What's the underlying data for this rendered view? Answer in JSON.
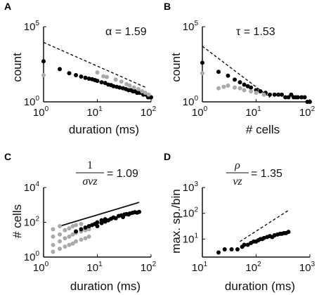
{
  "panels": {
    "A": {
      "letter": "A",
      "annotation": "α = 1.59",
      "ylabel": "count",
      "xlabel": "duration (ms)",
      "yticks": [
        {
          "base": "10",
          "exp": "5"
        },
        {
          "base": "10",
          "exp": "0"
        }
      ],
      "xticks": [
        {
          "base": "10",
          "exp": "0"
        },
        {
          "base": "10",
          "exp": "1"
        },
        {
          "base": "10",
          "exp": "2"
        }
      ]
    },
    "B": {
      "letter": "B",
      "annotation": "τ = 1.53",
      "ylabel": "count",
      "xlabel": "# cells",
      "yticks": [
        {
          "base": "10",
          "exp": "5"
        },
        {
          "base": "10",
          "exp": "0"
        }
      ],
      "xticks": [
        {
          "base": "10",
          "exp": "0"
        },
        {
          "base": "10",
          "exp": "1"
        },
        {
          "base": "10",
          "exp": "2"
        }
      ]
    },
    "C": {
      "letter": "C",
      "annotation": {
        "numerator": "1",
        "denominator": "σνz",
        "value": "= 1.09"
      },
      "ylabel": "# cells",
      "xlabel": "duration (ms)",
      "yticks": [
        {
          "base": "10",
          "exp": "4"
        },
        {
          "base": "10",
          "exp": "2"
        },
        {
          "base": "10",
          "exp": "0"
        }
      ],
      "xticks": [
        {
          "base": "10",
          "exp": "0"
        },
        {
          "base": "10",
          "exp": "1"
        },
        {
          "base": "10",
          "exp": "2"
        }
      ]
    },
    "D": {
      "letter": "D",
      "annotation": {
        "numerator": "ρ",
        "denominator": "νz",
        "value": "= 1.35"
      },
      "ylabel": "max. sp./bin",
      "xlabel": "duration (ms)",
      "yticks": [
        {
          "base": "10",
          "exp": "3"
        },
        {
          "base": "10",
          "exp": "2"
        },
        {
          "base": "10",
          "exp": "1"
        }
      ],
      "xticks": [
        {
          "base": "10",
          "exp": "1"
        },
        {
          "base": "10",
          "exp": "2"
        },
        {
          "base": "10",
          "exp": "3"
        }
      ]
    }
  },
  "chart_data": [
    {
      "panel": "A",
      "type": "scatter",
      "xscale": "log",
      "yscale": "log",
      "xlim": [
        1,
        100
      ],
      "ylim": [
        1,
        100000
      ],
      "xlabel": "duration (ms)",
      "ylabel": "count",
      "annotation": "α = 1.59",
      "series": [
        {
          "color": "#000000",
          "points": [
            [
              1,
              500
            ],
            [
              2,
              150
            ],
            [
              3,
              80
            ],
            [
              4,
              60
            ],
            [
              5,
              48
            ],
            [
              6,
              40
            ],
            [
              7,
              35
            ],
            [
              8,
              32
            ],
            [
              9,
              28
            ],
            [
              10,
              25
            ],
            [
              12,
              20
            ],
            [
              14,
              18
            ],
            [
              16,
              14
            ],
            [
              18,
              13
            ],
            [
              20,
              11
            ],
            [
              23,
              10
            ],
            [
              26,
              9
            ],
            [
              30,
              8
            ],
            [
              34,
              7
            ],
            [
              38,
              6
            ],
            [
              42,
              6
            ],
            [
              46,
              5
            ],
            [
              50,
              5
            ],
            [
              55,
              4
            ],
            [
              60,
              4
            ],
            [
              66,
              4
            ],
            [
              72,
              3
            ],
            [
              80,
              3
            ],
            [
              88,
              2
            ],
            [
              95,
              2
            ],
            [
              100,
              2
            ]
          ]
        },
        {
          "color": "#aaaaaa",
          "points": [
            [
              1,
              60
            ],
            [
              10,
              90
            ],
            [
              13,
              50
            ],
            [
              15,
              45
            ],
            [
              22,
              30
            ],
            [
              28,
              22
            ],
            [
              35,
              15
            ],
            [
              40,
              12
            ],
            [
              48,
              9
            ],
            [
              58,
              7
            ],
            [
              68,
              5
            ],
            [
              78,
              4
            ],
            [
              90,
              3
            ]
          ]
        }
      ],
      "fit_line": {
        "style": "dashed",
        "points": [
          [
            1,
            9000
          ],
          [
            80,
            9
          ]
        ]
      }
    },
    {
      "panel": "B",
      "type": "scatter",
      "xscale": "log",
      "yscale": "log",
      "xlim": [
        1,
        100
      ],
      "ylim": [
        1,
        100000
      ],
      "xlabel": "# cells",
      "ylabel": "count",
      "annotation": "τ = 1.53",
      "series": [
        {
          "color": "#000000",
          "points": [
            [
              1,
              400
            ],
            [
              2,
              100
            ],
            [
              3,
              55
            ],
            [
              4,
              30
            ],
            [
              5,
              20
            ],
            [
              6,
              14
            ],
            [
              7,
              11
            ],
            [
              8,
              9
            ],
            [
              10,
              6
            ],
            [
              12,
              5
            ],
            [
              15,
              4
            ],
            [
              18,
              3
            ],
            [
              22,
              3
            ],
            [
              26,
              3
            ],
            [
              30,
              3
            ],
            [
              35,
              2
            ],
            [
              40,
              2
            ],
            [
              45,
              3
            ],
            [
              50,
              2
            ],
            [
              55,
              2
            ],
            [
              60,
              2
            ],
            [
              70,
              2
            ],
            [
              80,
              2
            ],
            [
              90,
              1
            ],
            [
              100,
              1
            ]
          ]
        },
        {
          "color": "#aaaaaa",
          "points": [
            [
              1,
              80
            ],
            [
              2,
              8
            ],
            [
              2.5,
              10
            ],
            [
              3,
              12
            ],
            [
              4,
              9
            ],
            [
              5,
              8
            ],
            [
              6,
              6
            ],
            [
              8,
              5
            ],
            [
              10,
              4
            ],
            [
              14,
              3
            ]
          ]
        }
      ],
      "fit_line": {
        "style": "dashed",
        "points": [
          [
            1,
            5000
          ],
          [
            18,
            2
          ]
        ]
      }
    },
    {
      "panel": "C",
      "type": "scatter",
      "xscale": "log",
      "yscale": "log",
      "xlim": [
        1,
        100
      ],
      "ylim": [
        1,
        10000
      ],
      "xlabel": "duration (ms)",
      "ylabel": "# cells",
      "annotation": "1/σνz = 1.09",
      "series": [
        {
          "color": "#aaaaaa",
          "points": [
            [
              1.5,
              2
            ],
            [
              1.5,
              5
            ],
            [
              1.5,
              15
            ],
            [
              1.5,
              40
            ],
            [
              2,
              3
            ],
            [
              2,
              8
            ],
            [
              2,
              20
            ],
            [
              2,
              60
            ],
            [
              2.5,
              4
            ],
            [
              2.5,
              12
            ],
            [
              2.5,
              35
            ],
            [
              3,
              5
            ],
            [
              3,
              15
            ],
            [
              3,
              45
            ],
            [
              3.5,
              6
            ],
            [
              3.5,
              20
            ],
            [
              3.5,
              60
            ],
            [
              4,
              8
            ],
            [
              4,
              25
            ],
            [
              4,
              70
            ],
            [
              5,
              10
            ],
            [
              5,
              30
            ],
            [
              5,
              80
            ],
            [
              6,
              12
            ],
            [
              6,
              35
            ],
            [
              7,
              15
            ],
            [
              7,
              40
            ]
          ]
        },
        {
          "color": "#000000",
          "points": [
            [
              4,
              30
            ],
            [
              5,
              40
            ],
            [
              6,
              50
            ],
            [
              7,
              60
            ],
            [
              8,
              70
            ],
            [
              9,
              80
            ],
            [
              10,
              60
            ],
            [
              10,
              100
            ],
            [
              12,
              90
            ],
            [
              12,
              130
            ],
            [
              14,
              110
            ],
            [
              14,
              150
            ],
            [
              16,
              130
            ],
            [
              18,
              160
            ],
            [
              20,
              190
            ],
            [
              22,
              170
            ],
            [
              25,
              230
            ],
            [
              28,
              250
            ],
            [
              30,
              200
            ],
            [
              32,
              280
            ],
            [
              35,
              300
            ],
            [
              38,
              280
            ],
            [
              40,
              320
            ],
            [
              45,
              350
            ],
            [
              50,
              380
            ],
            [
              55,
              360
            ],
            [
              60,
              400
            ]
          ]
        }
      ],
      "fit_line": {
        "style": "solid",
        "points": [
          [
            2,
            60
          ],
          [
            60,
            1400
          ]
        ]
      }
    },
    {
      "panel": "D",
      "type": "scatter",
      "xscale": "log",
      "yscale": "log",
      "xlim": [
        10,
        1000
      ],
      "ylim": [
        2,
        1000
      ],
      "xlabel": "duration (ms)",
      "ylabel": "max. sp./bin",
      "annotation": "ρ/νz = 1.35",
      "series": [
        {
          "color": "#000000",
          "points": [
            [
              20,
              3
            ],
            [
              26,
              4
            ],
            [
              35,
              4
            ],
            [
              45,
              4
            ],
            [
              55,
              5
            ],
            [
              60,
              6
            ],
            [
              70,
              6
            ],
            [
              80,
              7
            ],
            [
              90,
              8
            ],
            [
              100,
              8
            ],
            [
              110,
              9
            ],
            [
              120,
              10
            ],
            [
              130,
              10
            ],
            [
              140,
              11
            ],
            [
              160,
              12
            ],
            [
              180,
              13
            ],
            [
              200,
              12
            ],
            [
              220,
              14
            ],
            [
              250,
              15
            ],
            [
              280,
              16
            ],
            [
              300,
              16
            ],
            [
              330,
              17
            ],
            [
              360,
              17
            ],
            [
              400,
              19
            ]
          ]
        }
      ],
      "fit_line": {
        "style": "dashed",
        "points": [
          [
            50,
            8
          ],
          [
            400,
            130
          ]
        ]
      }
    }
  ]
}
